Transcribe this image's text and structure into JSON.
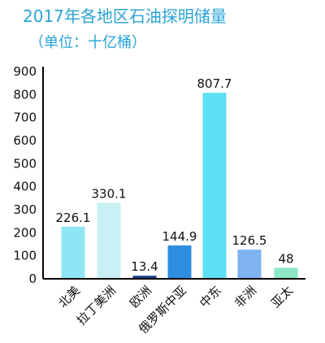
{
  "chart_data": {
    "type": "bar",
    "title": "2017年各地区石油探明储量",
    "subtitle": "（单位：十亿桶）",
    "categories": [
      "北美",
      "拉丁美洲",
      "欧洲",
      "俄罗斯中亚",
      "中东",
      "非洲",
      "亚太"
    ],
    "values": [
      226.1,
      330.1,
      13.4,
      144.9,
      807.7,
      126.5,
      48
    ],
    "value_labels": [
      "226.1",
      "330.1",
      "13.4",
      "144.9",
      "807.7",
      "126.5",
      "48"
    ],
    "ylim": [
      0,
      900
    ],
    "yticks": [
      0,
      100,
      200,
      300,
      400,
      500,
      600,
      700,
      800,
      900
    ],
    "colors": [
      "#8ee6f5",
      "#c9f1f5",
      "#1f3f8c",
      "#2e8ee0",
      "#5ee0f5",
      "#7eb3f0",
      "#8be9c5"
    ],
    "grid": false,
    "legend": "none"
  }
}
